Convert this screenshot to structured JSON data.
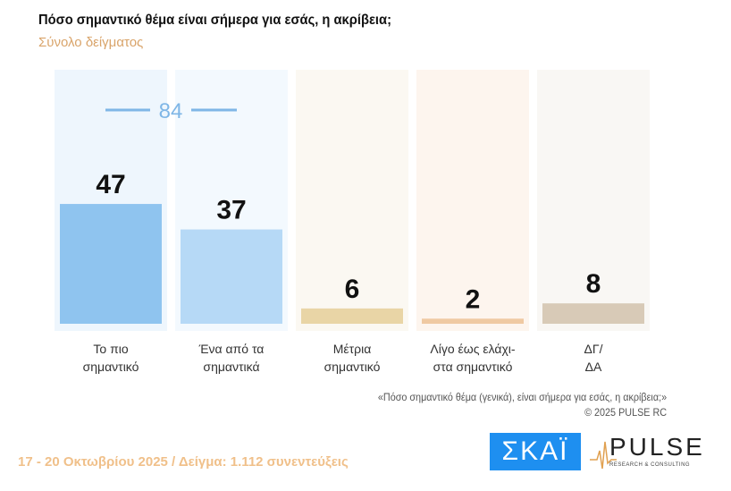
{
  "title": "Πόσο σημαντικό θέμα είναι σήμερα για εσάς, η ακρίβεια;",
  "subtitle": "Σύνολο δείγματος",
  "chart_data": {
    "type": "bar",
    "categories": [
      [
        "Το πιο",
        "σημαντικό"
      ],
      [
        "Ένα από τα",
        "σημαντικά"
      ],
      [
        "Μέτρια",
        "σημαντικό"
      ],
      [
        "Λίγο έως ελάχι-",
        "στα σημαντικό"
      ],
      [
        "ΔΓ/",
        "ΔΑ"
      ]
    ],
    "values": [
      47,
      37,
      6,
      2,
      8
    ],
    "colors": [
      "#8fc4ef",
      "#b6d9f6",
      "#e9d5a6",
      "#efc9a2",
      "#d8cab7"
    ],
    "group_total": {
      "label": "84",
      "covers": [
        0,
        1
      ]
    },
    "ylim": [
      0,
      100
    ]
  },
  "note": {
    "question": "«Πόσο σημαντικό θέμα (γενικά), είναι σήμερα για εσάς, η ακρίβεια;»",
    "copyright": "©  2025  PULSE RC"
  },
  "footer": "17 - 20 Οκτωβρίου 2025  /  Δείγμα:  1.112 συνεντεύξεις",
  "logos": {
    "skai": "ΣΚΑΪ",
    "pulse": "PULSE",
    "pulse_sub": "RESEARCH & CONSULTING"
  }
}
